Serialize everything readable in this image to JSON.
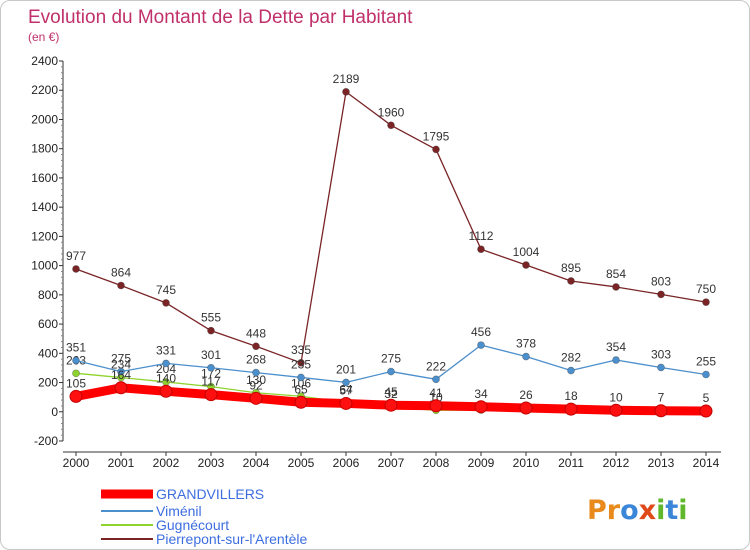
{
  "chart_data": {
    "type": "line",
    "title": "Evolution du Montant de la Dette par Habitant",
    "subtitle": "(en €)",
    "xlabel": "",
    "ylabel": "",
    "ylim": [
      -200,
      2400
    ],
    "yticks": [
      -200,
      0,
      200,
      400,
      600,
      800,
      1000,
      1200,
      1400,
      1600,
      1800,
      2000,
      2200,
      2400
    ],
    "x": [
      "2000",
      "2001",
      "2002",
      "2003",
      "2004",
      "2005",
      "2006",
      "2007",
      "2008",
      "2009",
      "2010",
      "2011",
      "2012",
      "2013",
      "2014"
    ],
    "grid": false,
    "legend_position": "bottom-left",
    "series": [
      {
        "name": "GRANDVILLERS",
        "color": "#ff0000",
        "values": [
          105,
          164,
          140,
          117,
          92,
          65,
          57,
          45,
          41,
          34,
          26,
          18,
          10,
          7,
          5
        ],
        "labels": [
          "105",
          "164",
          "140",
          "117",
          "92",
          "65",
          "57",
          "45",
          "41",
          "34",
          "26",
          "18",
          "10",
          "7",
          "5"
        ]
      },
      {
        "name": "Viménil",
        "color": "#4b8fcc",
        "values": [
          351,
          275,
          331,
          301,
          268,
          235,
          201,
          275,
          222,
          456,
          378,
          282,
          354,
          303,
          255
        ],
        "labels": [
          "351",
          "275",
          "331",
          "301",
          "268",
          "235",
          "201",
          "275",
          "222",
          "456",
          "378",
          "282",
          "354",
          "303",
          "255"
        ]
      },
      {
        "name": "Gugnécourt",
        "color": "#8fd42e",
        "values": [
          263,
          234,
          204,
          172,
          130,
          106,
          64,
          32,
          10,
          12,
          8,
          5,
          5,
          1,
          1
        ],
        "labels": [
          "263",
          "234",
          "204",
          "172",
          "130",
          "106",
          "64",
          "32",
          "10",
          "",
          "",
          "",
          "",
          "",
          ""
        ]
      },
      {
        "name": "Pierrepont-sur-l'Arentèle",
        "color": "#7a2426",
        "values": [
          977,
          864,
          745,
          555,
          448,
          335,
          2189,
          1960,
          1795,
          1112,
          1004,
          895,
          854,
          803,
          750
        ],
        "labels": [
          "977",
          "864",
          "745",
          "555",
          "448",
          "335",
          "2189",
          "1960",
          "1795",
          "1112",
          "1004",
          "895",
          "854",
          "803",
          "750"
        ]
      }
    ]
  },
  "logo": {
    "text": "Proxiti",
    "colors": [
      "#e88a1c",
      "#3b86d8",
      "#5fb82a",
      "#e04a1a"
    ]
  }
}
